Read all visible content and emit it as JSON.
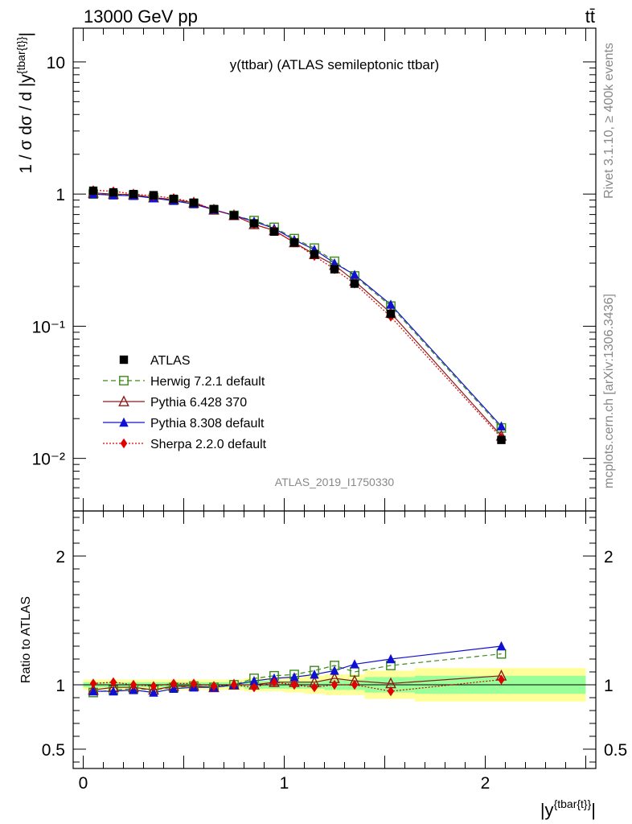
{
  "header": {
    "left": "13000 GeV pp",
    "right": "tt̄"
  },
  "side_labels": {
    "rivet": "Rivet 3.1.10, ≥ 400k events",
    "mcplots": "mcplots.cern.ch [arXiv:1306.3436]"
  },
  "chart_data": [
    {
      "type": "line",
      "title": "y(ttbar) (ATLAS semileptonic ttbar)",
      "ylabel": "1 / σ dσ / d |y^{tbar{t}}|",
      "yscale": "log",
      "ylim": [
        0.004,
        18
      ],
      "xlim": [
        -0.05,
        2.55
      ],
      "ytick_labels": [
        "10⁻²",
        "10⁻¹",
        "1",
        "10"
      ],
      "watermark": "ATLAS_2019_I1750330",
      "legend_position": "lower-left",
      "x": [
        0.05,
        0.15,
        0.25,
        0.35,
        0.45,
        0.55,
        0.65,
        0.75,
        0.85,
        0.95,
        1.05,
        1.15,
        1.25,
        1.35,
        1.53,
        2.08
      ],
      "x_edges": [
        0.0,
        0.1,
        0.2,
        0.3,
        0.4,
        0.5,
        0.6,
        0.7,
        0.8,
        0.9,
        1.0,
        1.1,
        1.2,
        1.3,
        1.4,
        1.65,
        2.5
      ],
      "series": [
        {
          "name": "ATLAS",
          "color": "#000000",
          "marker": "square-filled",
          "values": [
            1.06,
            1.03,
            1.0,
            0.98,
            0.92,
            0.86,
            0.77,
            0.69,
            0.6,
            0.52,
            0.43,
            0.35,
            0.27,
            0.21,
            0.124,
            0.0138
          ]
        },
        {
          "name": "Herwig 7.2.1 default",
          "color": "#3a8a1a",
          "marker": "square-open",
          "dash": "6,4",
          "values": [
            1.0,
            0.99,
            0.98,
            0.94,
            0.9,
            0.85,
            0.76,
            0.69,
            0.63,
            0.56,
            0.46,
            0.39,
            0.31,
            0.24,
            0.142,
            0.017
          ]
        },
        {
          "name": "Pythia 6.428 370",
          "color": "#8b1a1a",
          "marker": "triangle-open",
          "values": [
            1.02,
            1.0,
            0.99,
            0.94,
            0.91,
            0.86,
            0.76,
            0.69,
            0.59,
            0.53,
            0.43,
            0.35,
            0.29,
            0.22,
            0.126,
            0.0148
          ]
        },
        {
          "name": "Pythia 8.308 default",
          "color": "#1010d0",
          "marker": "triangle-filled",
          "values": [
            1.0,
            0.98,
            0.97,
            0.93,
            0.89,
            0.84,
            0.76,
            0.69,
            0.62,
            0.55,
            0.45,
            0.38,
            0.3,
            0.245,
            0.146,
            0.0175
          ]
        },
        {
          "name": "Sherpa 2.2.0 default",
          "color": "#e00000",
          "marker": "diamond-filled",
          "dash": "2,2",
          "values": [
            1.07,
            1.05,
            1.0,
            0.97,
            0.93,
            0.87,
            0.76,
            0.69,
            0.59,
            0.53,
            0.43,
            0.34,
            0.27,
            0.21,
            0.118,
            0.0143
          ]
        }
      ]
    },
    {
      "type": "line",
      "ylabel": "Ratio to ATLAS",
      "xlabel": "|y^{tbar{t}}|",
      "ylim": [
        0.35,
        2.35
      ],
      "xlim": [
        -0.05,
        2.55
      ],
      "ytick_labels": [
        "0.5",
        "1",
        "2"
      ],
      "xtick_labels": [
        "0",
        "1",
        "2"
      ],
      "band_inner": [
        0.02,
        0.02,
        0.02,
        0.02,
        0.02,
        0.02,
        0.02,
        0.02,
        0.03,
        0.03,
        0.03,
        0.03,
        0.04,
        0.04,
        0.06,
        0.07
      ],
      "band_outer": [
        0.04,
        0.04,
        0.04,
        0.04,
        0.04,
        0.04,
        0.04,
        0.04,
        0.05,
        0.05,
        0.06,
        0.07,
        0.08,
        0.08,
        0.11,
        0.13
      ],
      "series": [
        {
          "name": "Herwig 7.2.1 default",
          "color": "#3a8a1a",
          "marker": "square-open",
          "dash": "6,4",
          "values": [
            0.94,
            0.96,
            0.97,
            0.96,
            0.98,
            0.99,
            0.98,
            1.0,
            1.05,
            1.07,
            1.08,
            1.11,
            1.15,
            1.1,
            1.15,
            1.24
          ]
        },
        {
          "name": "Pythia 6.428 370",
          "color": "#8b1a1a",
          "marker": "triangle-open",
          "values": [
            0.96,
            0.98,
            0.98,
            0.96,
            0.99,
            0.99,
            0.98,
            1.0,
            1.0,
            1.02,
            1.02,
            1.02,
            1.05,
            1.03,
            1.01,
            1.07
          ]
        },
        {
          "name": "Pythia 8.308 default",
          "color": "#1010d0",
          "marker": "triangle-filled",
          "values": [
            0.95,
            0.95,
            0.96,
            0.94,
            0.97,
            0.98,
            0.98,
            1.0,
            1.03,
            1.05,
            1.06,
            1.08,
            1.11,
            1.16,
            1.2,
            1.3
          ]
        },
        {
          "name": "Sherpa 2.2.0 default",
          "color": "#e00000",
          "marker": "diamond-filled",
          "dash": "2,2",
          "values": [
            1.01,
            1.02,
            1.0,
            0.99,
            1.01,
            1.01,
            0.99,
            1.0,
            0.98,
            1.02,
            1.0,
            0.98,
            1.0,
            1.0,
            0.95,
            1.04
          ]
        }
      ]
    }
  ]
}
